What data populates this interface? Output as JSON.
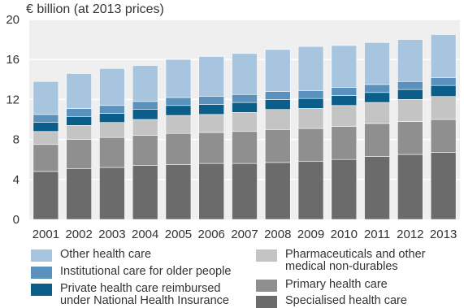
{
  "chart_data": {
    "type": "bar",
    "stacked": true,
    "unit_label": "€ billion (at 2013 prices)",
    "categories": [
      "2001",
      "2002",
      "2003",
      "2004",
      "2005",
      "2006",
      "2007",
      "2008",
      "2009",
      "2010",
      "2011",
      "2012",
      "2013"
    ],
    "ylim": [
      0,
      20
    ],
    "yticks": [
      "0",
      "4",
      "8",
      "12",
      "16",
      "20"
    ],
    "grid": "horizontal",
    "series": [
      {
        "name": "Specialised health care",
        "color": "#6b6b6b",
        "values": [
          4.8,
          5.1,
          5.2,
          5.4,
          5.5,
          5.6,
          5.6,
          5.7,
          5.8,
          6.0,
          6.3,
          6.5,
          6.7
        ]
      },
      {
        "name": "Primary health care",
        "color": "#8f8f8f",
        "values": [
          2.7,
          2.9,
          3.0,
          3.0,
          3.1,
          3.1,
          3.2,
          3.3,
          3.3,
          3.3,
          3.3,
          3.3,
          3.3
        ]
      },
      {
        "name": "Pharmaceuticals and other medical non-durables",
        "color": "#c4c4c4",
        "values": [
          1.3,
          1.4,
          1.5,
          1.6,
          1.8,
          1.8,
          1.9,
          2.0,
          2.0,
          2.1,
          2.1,
          2.2,
          2.3
        ]
      },
      {
        "name": "Private health care reimbursed under National Health Insurance",
        "color": "#0b5e8a",
        "values": [
          0.9,
          0.9,
          0.9,
          1.0,
          1.0,
          1.0,
          1.0,
          1.0,
          1.0,
          1.0,
          1.0,
          1.0,
          1.1
        ]
      },
      {
        "name": "Institutional care for older people",
        "color": "#5a92bd",
        "values": [
          0.8,
          0.8,
          0.8,
          0.8,
          0.8,
          0.8,
          0.8,
          0.8,
          0.8,
          0.8,
          0.8,
          0.8,
          0.8
        ]
      },
      {
        "name": "Other health care",
        "color": "#a8c5e0",
        "values": [
          3.3,
          3.5,
          3.7,
          3.6,
          3.8,
          4.0,
          4.1,
          4.2,
          4.4,
          4.2,
          4.2,
          4.2,
          4.3
        ]
      }
    ]
  },
  "legend": {
    "left": [
      {
        "label": "Other health care",
        "color": "#a8c5e0"
      },
      {
        "label": "Institutional care for older people",
        "color": "#5a92bd"
      },
      {
        "label": "Private health care reimbursed under National Health Insurance",
        "color": "#0b5e8a"
      }
    ],
    "right": [
      {
        "label": "Pharmaceuticals and other medical non-durables",
        "color": "#c4c4c4"
      },
      {
        "label": "Primary health care",
        "color": "#8f8f8f"
      },
      {
        "label": "Specialised health care",
        "color": "#6b6b6b"
      }
    ]
  }
}
